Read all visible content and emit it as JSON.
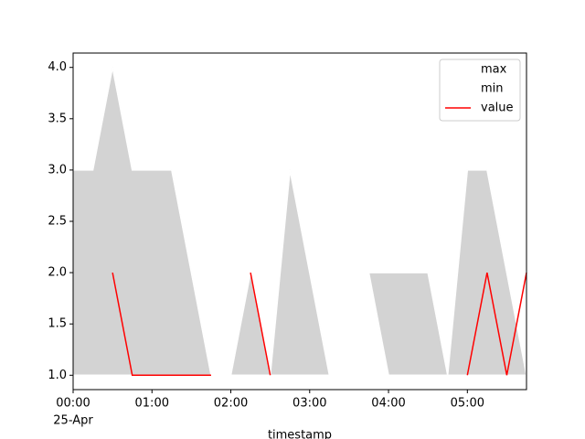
{
  "chart_data": {
    "type": "line",
    "x_label": "timestamp",
    "x_date_label": "25-Apr",
    "x": [
      "00:00",
      "00:15",
      "00:30",
      "00:45",
      "01:00",
      "01:15",
      "01:30",
      "01:45",
      "02:00",
      "02:15",
      "02:30",
      "02:45",
      "03:00",
      "03:15",
      "03:30",
      "03:45",
      "04:00",
      "04:15",
      "04:30",
      "04:45",
      "05:00",
      "05:15",
      "05:30",
      "05:45"
    ],
    "xlim": [
      "00:00",
      "05:45"
    ],
    "xticks": [
      "00:00",
      "01:00",
      "02:00",
      "03:00",
      "04:00",
      "05:00"
    ],
    "ylim": [
      0.86,
      4.14
    ],
    "yticks": [
      {
        "value": 1,
        "label": "1.0"
      },
      {
        "value": 1.5,
        "label": "1.5"
      },
      {
        "value": 2,
        "label": "2.0"
      },
      {
        "value": 2.5,
        "label": "2.5"
      },
      {
        "value": 3,
        "label": "3.0"
      },
      {
        "value": 3.5,
        "label": "3.5"
      },
      {
        "value": 4,
        "label": "4.0"
      }
    ],
    "fill_color": "lightgray",
    "legend_position": "upper right",
    "series": [
      {
        "name": "max",
        "color": "white",
        "values": [
          3,
          3,
          4,
          3,
          3,
          3,
          2,
          1,
          1,
          2,
          1,
          3,
          2,
          1,
          2,
          2,
          2,
          2,
          2,
          1,
          3,
          3,
          2,
          1
        ]
      },
      {
        "name": "min",
        "color": "white",
        "values": [
          1,
          1,
          1,
          1,
          1,
          1,
          1,
          1,
          1,
          1,
          1,
          1,
          1,
          1,
          2,
          2,
          1,
          1,
          1,
          1,
          1,
          1,
          1,
          1
        ]
      },
      {
        "name": "value",
        "color": "red",
        "values": [
          null,
          null,
          2,
          1,
          1,
          1,
          1,
          1,
          null,
          2,
          1,
          null,
          null,
          null,
          null,
          null,
          null,
          null,
          null,
          null,
          1,
          2,
          1,
          2
        ]
      }
    ]
  }
}
